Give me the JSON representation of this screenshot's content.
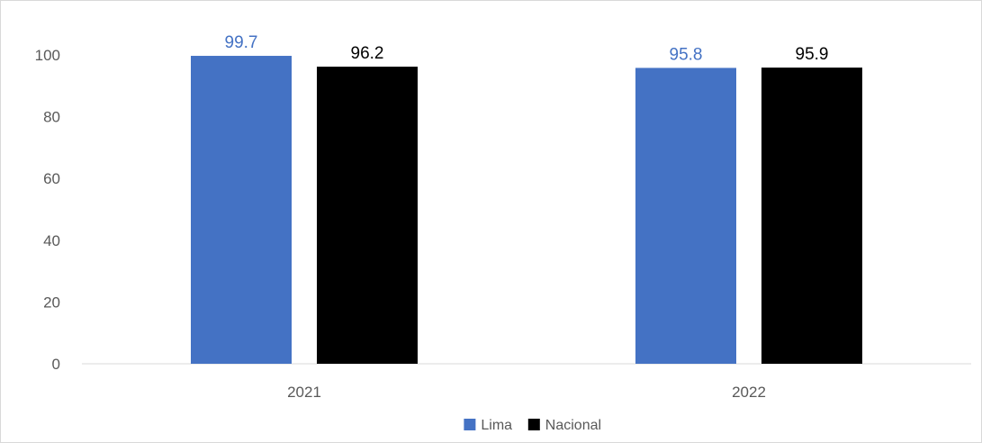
{
  "chart_data": {
    "type": "bar",
    "title": "",
    "xlabel": "",
    "ylabel": "",
    "categories": [
      "2021",
      "2022"
    ],
    "series": [
      {
        "name": "Lima",
        "values": [
          99.7,
          95.8
        ],
        "color": "#4472c4",
        "label_color": "#4472c4"
      },
      {
        "name": "Nacional",
        "values": [
          96.2,
          95.9
        ],
        "color": "#000000",
        "label_color": "#000000"
      }
    ],
    "ylim": [
      0,
      100
    ],
    "yticks": [
      "0",
      "20",
      "40",
      "60",
      "80",
      "100"
    ],
    "data_labels": [
      [
        "99.7",
        "95.8"
      ],
      [
        "96.2",
        "95.9"
      ]
    ],
    "grid": false,
    "legend_position": "bottom"
  }
}
